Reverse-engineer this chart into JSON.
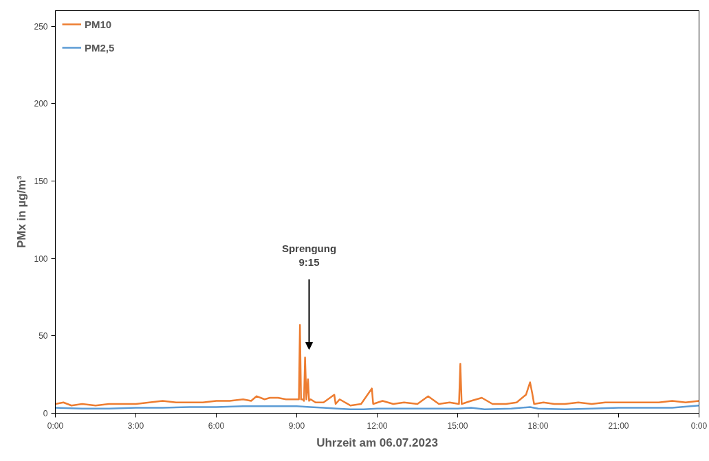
{
  "chart_data": {
    "type": "line",
    "xlabel": "Uhrzeit am 06.07.2023",
    "ylabel": "PMx in µg/m³",
    "xlim": [
      0,
      24
    ],
    "ylim": [
      0,
      260
    ],
    "xticks": [
      {
        "value": 0,
        "label": "0:00"
      },
      {
        "value": 3,
        "label": "3:00"
      },
      {
        "value": 6,
        "label": "6:00"
      },
      {
        "value": 9,
        "label": "9:00"
      },
      {
        "value": 12,
        "label": "12:00"
      },
      {
        "value": 15,
        "label": "15:00"
      },
      {
        "value": 18,
        "label": "18:00"
      },
      {
        "value": 21,
        "label": "21:00"
      },
      {
        "value": 24,
        "label": "0:00"
      }
    ],
    "yticks": [
      0,
      50,
      100,
      150,
      200,
      250
    ],
    "grid": false,
    "legend": "top left",
    "marker": "none",
    "line_style": "solid",
    "annotations": [
      "Sprengung\n9:15"
    ],
    "series": [
      {
        "name": "PM10",
        "color": "#ed7d31",
        "x": [
          0,
          0.3,
          0.6,
          1,
          1.5,
          2,
          2.5,
          3,
          3.5,
          4,
          4.5,
          5,
          5.5,
          6,
          6.5,
          7,
          7.3,
          7.5,
          7.8,
          8,
          8.3,
          8.6,
          9,
          9.08,
          9.12,
          9.16,
          9.22,
          9.27,
          9.31,
          9.36,
          9.42,
          9.46,
          9.52,
          9.7,
          10,
          10.4,
          10.45,
          10.6,
          11,
          11.4,
          11.8,
          11.85,
          12.2,
          12.6,
          13,
          13.5,
          13.9,
          14.3,
          14.7,
          15.05,
          15.1,
          15.15,
          15.5,
          15.9,
          16.3,
          16.8,
          17.2,
          17.55,
          17.7,
          17.78,
          17.85,
          18.2,
          18.6,
          19,
          19.5,
          20,
          20.5,
          21,
          21.5,
          22,
          22.5,
          23,
          23.5,
          24
        ],
        "values": [
          6,
          7,
          5,
          6,
          5,
          6,
          6,
          6,
          7,
          8,
          7,
          7,
          7,
          8,
          8,
          9,
          8,
          11,
          9,
          10,
          10,
          9,
          9,
          9,
          57,
          9,
          9,
          8,
          36,
          9,
          22,
          8,
          9,
          7,
          7,
          12,
          6,
          9,
          5,
          6,
          16,
          6,
          8,
          6,
          7,
          6,
          11,
          6,
          7,
          6,
          32,
          6,
          8,
          10,
          6,
          6,
          7,
          12,
          20,
          13,
          6,
          7,
          6,
          6,
          7,
          6,
          7,
          7,
          7,
          7,
          7,
          8,
          7,
          8
        ]
      },
      {
        "name": "PM2,5",
        "color": "#5b9bd5",
        "x": [
          0,
          1,
          2,
          3,
          4,
          5,
          6,
          7,
          8,
          9,
          9.5,
          10,
          10.5,
          11,
          11.5,
          12,
          13,
          14,
          15,
          15.5,
          16,
          17,
          17.7,
          18,
          19,
          20,
          21,
          22,
          23,
          24
        ],
        "values": [
          3.5,
          3,
          3,
          3.5,
          3.5,
          4,
          4,
          4.5,
          4.5,
          4.5,
          4,
          3.5,
          3,
          2.5,
          2.5,
          3,
          3,
          3,
          3,
          3.5,
          2.5,
          3,
          4,
          3,
          2.5,
          3,
          3.5,
          3.5,
          3.5,
          5
        ]
      }
    ]
  }
}
